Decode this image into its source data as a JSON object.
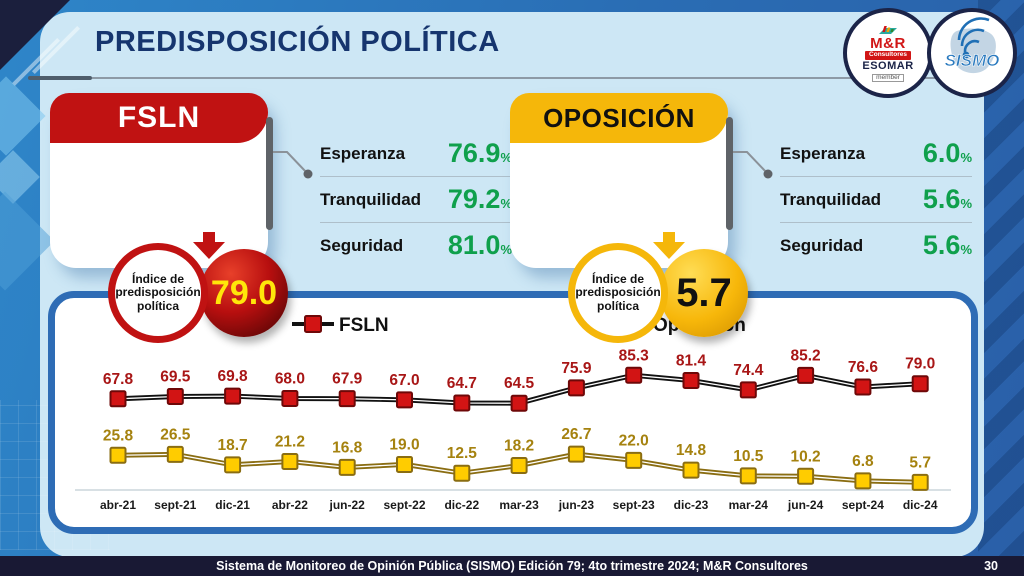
{
  "header": {
    "title": "PREDISPOSICIÓN POLÍTICA"
  },
  "logos": {
    "mr": {
      "name": "M&R",
      "sub": "Consultores",
      "org": "ESOMAR",
      "member": "member"
    },
    "sismo": {
      "name": "SISMO"
    }
  },
  "cards": [
    {
      "title": "FSLN",
      "index_label": "Índice de predisposición política",
      "index_value": "79.0",
      "stats": [
        {
          "label": "Esperanza",
          "value": "76.9",
          "unit": "%"
        },
        {
          "label": "Tranquilidad",
          "value": "79.2",
          "unit": "%"
        },
        {
          "label": "Seguridad",
          "value": "81.0",
          "unit": "%"
        }
      ]
    },
    {
      "title": "OPOSICIÓN",
      "index_label": "Índice de predisposición política",
      "index_value": "5.7",
      "stats": [
        {
          "label": "Esperanza",
          "value": "6.0",
          "unit": "%"
        },
        {
          "label": "Tranquilidad",
          "value": "5.6",
          "unit": "%"
        },
        {
          "label": "Seguridad",
          "value": "5.6",
          "unit": "%"
        }
      ]
    }
  ],
  "colors": {
    "fsln_red": "#C01212",
    "oposicion_yellow": "#F5B70A",
    "stat_green": "#0FA04C",
    "title_navy": "#16356E",
    "chart_border_blue": "#2E6CB5"
  },
  "chart_data": {
    "type": "line",
    "categories": [
      "abr-21",
      "sept-21",
      "dic-21",
      "abr-22",
      "jun-22",
      "sept-22",
      "dic-22",
      "mar-23",
      "jun-23",
      "sept-23",
      "dic-23",
      "mar-24",
      "jun-24",
      "sept-24",
      "dic-24"
    ],
    "series": [
      {
        "name": "FSLN",
        "values": [
          67.8,
          69.5,
          69.8,
          68.0,
          67.9,
          67.0,
          64.7,
          64.5,
          75.9,
          85.3,
          81.4,
          74.4,
          85.2,
          76.6,
          79.0
        ],
        "line_color": "#111111",
        "marker_fill": "#D21414",
        "marker_stroke": "#6E0808",
        "label_color": "#A81616"
      },
      {
        "name": "Oposición",
        "values": [
          25.8,
          26.5,
          18.7,
          21.2,
          16.8,
          19.0,
          12.5,
          18.2,
          26.7,
          22.0,
          14.8,
          10.5,
          10.2,
          6.8,
          5.7
        ],
        "line_color": "#8A6D12",
        "marker_fill": "#FFCC00",
        "marker_stroke": "#8A6D12",
        "label_color": "#A5820F"
      }
    ],
    "ylim": [
      0,
      100
    ],
    "grid": false,
    "legend_position": "top",
    "data_labels": true
  },
  "footer": {
    "text": "Sistema de Monitoreo de Opinión Pública (SISMO) Edición 79; 4to trimestre 2024; M&R Consultores",
    "page": "30"
  }
}
